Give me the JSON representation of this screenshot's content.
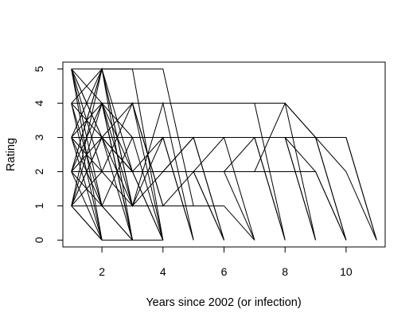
{
  "chart_data": {
    "type": "line",
    "title": "",
    "xlabel": "Years since 2002 (or infection)",
    "ylabel": "Rating",
    "xlim": [
      0.72,
      11.28
    ],
    "ylim": [
      -0.2,
      5.2
    ],
    "xticks": [
      2,
      4,
      6,
      8,
      10
    ],
    "yticks": [
      0,
      1,
      2,
      3,
      4,
      5
    ],
    "grid": false,
    "legend": "none",
    "line_color": "#000000",
    "series": [
      {
        "x": [
          1,
          2,
          3,
          4,
          5
        ],
        "y": [
          5,
          5,
          5,
          5,
          1
        ]
      },
      {
        "x": [
          1,
          2
        ],
        "y": [
          5,
          0
        ]
      },
      {
        "x": [
          1,
          2
        ],
        "y": [
          5,
          2
        ]
      },
      {
        "x": [
          1,
          2,
          3
        ],
        "y": [
          5,
          4,
          0
        ]
      },
      {
        "x": [
          1,
          2,
          3
        ],
        "y": [
          5,
          3,
          2
        ]
      },
      {
        "x": [
          1,
          2
        ],
        "y": [
          4,
          0
        ]
      },
      {
        "x": [
          1,
          2,
          3
        ],
        "y": [
          4,
          4,
          0
        ]
      },
      {
        "x": [
          1,
          2,
          3
        ],
        "y": [
          4,
          5,
          1
        ]
      },
      {
        "x": [
          1,
          2,
          3
        ],
        "y": [
          4,
          3,
          0
        ]
      },
      {
        "x": [
          1,
          2
        ],
        "y": [
          4,
          1
        ]
      },
      {
        "x": [
          1,
          2,
          3,
          4
        ],
        "y": [
          4,
          4,
          2,
          0
        ]
      },
      {
        "x": [
          1,
          2
        ],
        "y": [
          3,
          0
        ]
      },
      {
        "x": [
          1,
          2,
          3
        ],
        "y": [
          3,
          5,
          0
        ]
      },
      {
        "x": [
          1,
          2,
          3
        ],
        "y": [
          3,
          4,
          1
        ]
      },
      {
        "x": [
          1,
          2,
          3,
          4
        ],
        "y": [
          3,
          3,
          3,
          0
        ]
      },
      {
        "x": [
          1,
          2,
          3,
          4,
          5
        ],
        "y": [
          3,
          2,
          2,
          3,
          0
        ]
      },
      {
        "x": [
          1,
          2,
          3
        ],
        "y": [
          3,
          1,
          0
        ]
      },
      {
        "x": [
          1,
          2
        ],
        "y": [
          2,
          0
        ]
      },
      {
        "x": [
          1,
          2,
          3
        ],
        "y": [
          2,
          5,
          2
        ]
      },
      {
        "x": [
          1,
          2,
          3
        ],
        "y": [
          2,
          4,
          0
        ]
      },
      {
        "x": [
          1,
          2,
          3,
          4
        ],
        "y": [
          2,
          3,
          4,
          0
        ]
      },
      {
        "x": [
          1,
          2,
          3,
          4
        ],
        "y": [
          2,
          2,
          1,
          3
        ]
      },
      {
        "x": [
          1,
          2,
          3
        ],
        "y": [
          2,
          1,
          1
        ]
      },
      {
        "x": [
          1,
          2
        ],
        "y": [
          1,
          0
        ]
      },
      {
        "x": [
          1,
          2,
          3,
          4
        ],
        "y": [
          1,
          5,
          5,
          0
        ]
      },
      {
        "x": [
          1,
          2,
          3
        ],
        "y": [
          1,
          4,
          3
        ]
      },
      {
        "x": [
          1,
          2,
          3
        ],
        "y": [
          1,
          3,
          1
        ]
      },
      {
        "x": [
          1,
          2,
          3,
          4
        ],
        "y": [
          1,
          2,
          4,
          1
        ]
      },
      {
        "x": [
          1,
          2,
          3
        ],
        "y": [
          1,
          1,
          0
        ]
      },
      {
        "x": [
          1,
          2,
          3,
          4,
          5,
          6
        ],
        "y": [
          5,
          1,
          3,
          3,
          3,
          0
        ]
      },
      {
        "x": [
          1,
          2,
          3,
          4
        ],
        "y": [
          1,
          0,
          0,
          0
        ]
      },
      {
        "x": [
          1,
          2,
          3,
          4,
          5,
          6,
          7
        ],
        "y": [
          2,
          2,
          2,
          2,
          2,
          2,
          0
        ]
      },
      {
        "x": [
          1,
          2,
          3,
          4,
          5,
          6,
          7,
          8
        ],
        "y": [
          3,
          3,
          3,
          3,
          3,
          3,
          3,
          0
        ]
      },
      {
        "x": [
          1,
          2,
          3,
          4,
          5,
          6,
          7,
          8,
          9
        ],
        "y": [
          3,
          3,
          3,
          3,
          3,
          3,
          3,
          3,
          0
        ]
      },
      {
        "x": [
          1,
          2,
          3,
          4,
          5,
          6,
          7,
          8,
          9,
          10
        ],
        "y": [
          3,
          3,
          3,
          3,
          3,
          3,
          3,
          3,
          3,
          0
        ]
      },
      {
        "x": [
          1,
          2,
          3,
          4,
          5,
          6,
          7,
          8,
          9,
          10,
          11
        ],
        "y": [
          2,
          2,
          2,
          2,
          2,
          2,
          3,
          3,
          3,
          3,
          0
        ]
      },
      {
        "x": [
          1,
          2,
          3,
          4,
          5,
          6,
          7,
          8,
          9,
          10,
          11
        ],
        "y": [
          1,
          1,
          1,
          2,
          2,
          3,
          3,
          3,
          3,
          2,
          0
        ]
      },
      {
        "x": [
          1,
          2,
          3,
          4,
          5,
          6,
          7,
          8,
          9,
          10,
          11
        ],
        "y": [
          4,
          4,
          4,
          4,
          4,
          4,
          4,
          4,
          3,
          3,
          0
        ]
      },
      {
        "x": [
          1,
          2,
          3,
          4,
          5,
          6,
          7,
          8,
          9,
          10
        ],
        "y": [
          2,
          2,
          2,
          2,
          2,
          2,
          2,
          4,
          3,
          0
        ]
      },
      {
        "x": [
          1,
          2,
          3,
          4,
          5,
          6,
          7,
          8
        ],
        "y": [
          4,
          4,
          4,
          4,
          4,
          4,
          4,
          0
        ]
      },
      {
        "x": [
          1,
          2,
          3,
          4,
          5,
          6,
          7,
          8,
          9,
          10
        ],
        "y": [
          2,
          2,
          2,
          2,
          2,
          2,
          2,
          2,
          2,
          0
        ]
      },
      {
        "x": [
          1,
          2,
          3,
          4,
          5,
          6,
          7,
          8,
          9
        ],
        "y": [
          3,
          3,
          3,
          3,
          3,
          3,
          3,
          3,
          0
        ]
      },
      {
        "x": [
          1,
          2,
          3,
          4,
          5,
          6,
          7
        ],
        "y": [
          1,
          1,
          1,
          1,
          1,
          1,
          0
        ]
      },
      {
        "x": [
          1,
          2,
          3,
          4,
          5,
          6
        ],
        "y": [
          2,
          2,
          2,
          2,
          2,
          0
        ]
      },
      {
        "x": [
          1,
          2,
          3,
          4,
          5
        ],
        "y": [
          3,
          3,
          3,
          3,
          0
        ]
      },
      {
        "x": [
          1,
          2,
          3,
          4,
          5,
          6
        ],
        "y": [
          4,
          4,
          4,
          1,
          2,
          0
        ]
      },
      {
        "x": [
          1,
          2,
          3,
          4,
          5,
          6,
          7
        ],
        "y": [
          3,
          3,
          3,
          3,
          3,
          3,
          0
        ]
      },
      {
        "x": [
          1,
          2,
          3,
          4,
          5,
          6,
          7,
          8
        ],
        "y": [
          2,
          2,
          2,
          2,
          3,
          3,
          3,
          0
        ]
      },
      {
        "x": [
          1,
          2,
          3,
          4,
          5,
          6,
          7,
          8,
          9
        ],
        "y": [
          4,
          4,
          4,
          4,
          4,
          4,
          4,
          4,
          0
        ]
      },
      {
        "x": [
          1,
          2,
          3,
          4,
          5,
          6,
          7,
          8,
          9,
          10
        ],
        "y": [
          3,
          3,
          3,
          3,
          3,
          3,
          3,
          3,
          2,
          0
        ]
      },
      {
        "x": [
          1,
          2,
          3,
          4
        ],
        "y": [
          5,
          3,
          2,
          0
        ]
      },
      {
        "x": [
          1,
          2,
          3,
          4,
          5
        ],
        "y": [
          2,
          5,
          1,
          4,
          0
        ]
      },
      {
        "x": [
          1,
          2,
          3,
          4,
          5,
          6
        ],
        "y": [
          1,
          3,
          2,
          2,
          3,
          0
        ]
      }
    ]
  }
}
